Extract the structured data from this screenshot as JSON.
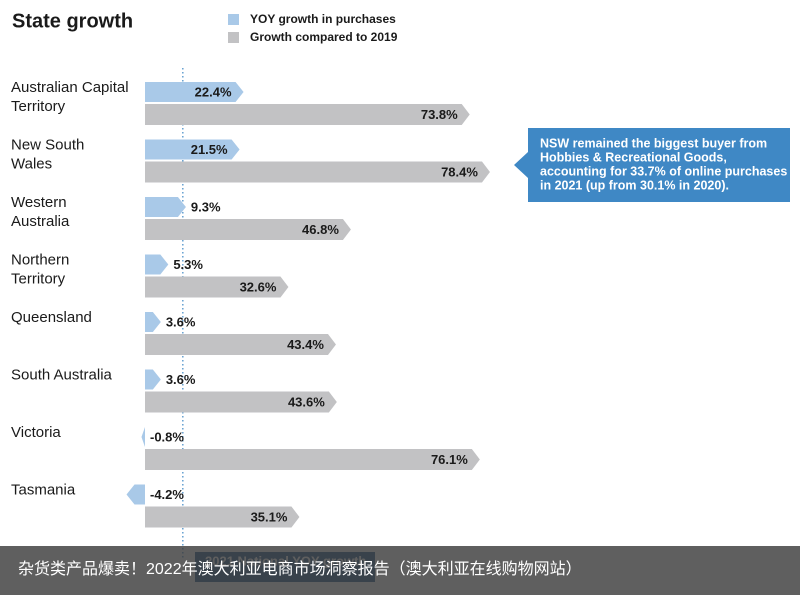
{
  "chart_data": {
    "type": "bar",
    "orientation": "horizontal",
    "title": "State growth",
    "categories": [
      "Australian Capital\nTerritory",
      "New South\nWales",
      "Western\nAustralia",
      "Northern\nTerritory",
      "Queensland",
      "South Australia",
      "Victoria",
      "Tasmania"
    ],
    "series": [
      {
        "name": "YOY growth in purchases",
        "color": "#a9c9e8",
        "values": [
          22.4,
          21.5,
          9.3,
          5.3,
          3.6,
          3.6,
          -0.8,
          -4.2
        ],
        "value_labels": [
          "22.4%",
          "21.5%",
          "9.3%",
          "5.3%",
          "3.6%",
          "3.6%",
          "-0.8%",
          "-4.2%"
        ]
      },
      {
        "name": "Growth compared to 2019",
        "color": "#c2c2c4",
        "values": [
          73.8,
          78.4,
          46.8,
          32.6,
          43.4,
          43.6,
          76.1,
          35.1
        ],
        "value_labels": [
          "73.8%",
          "78.4%",
          "46.8%",
          "32.6%",
          "43.4%",
          "43.6%",
          "76.1%",
          "35.1%"
        ]
      }
    ],
    "reference": {
      "label": "2021 National YOY growth",
      "value": 8.6
    },
    "annotation": [
      "NSW remained the biggest buyer from",
      "Hobbies & Recreational Goods,",
      "accounting for 33.7% of online purchases",
      "in 2021 (up from 30.1% in 2020)."
    ],
    "annotation_color": "#3f88c5",
    "banner": "杂货类产品爆卖！2022年澳大利亚电商市场洞察报告（澳大利亚在线购物网站）"
  }
}
